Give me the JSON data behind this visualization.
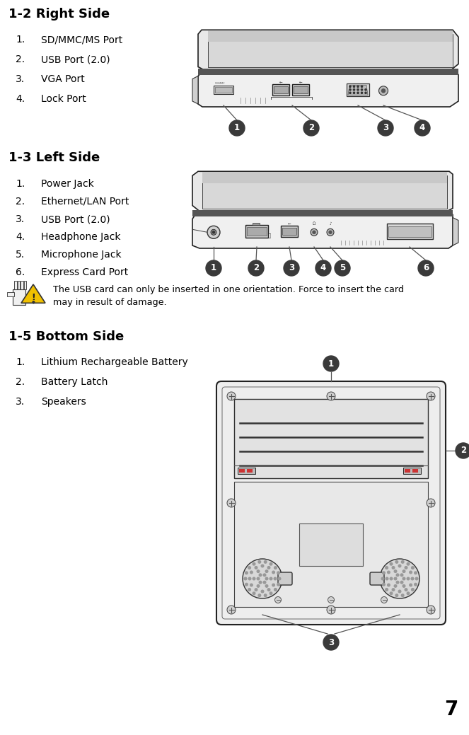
{
  "title_right": "1-2 Right Side",
  "title_left": "1-3 Left Side",
  "title_bottom": "1-5 Bottom Side",
  "right_items": [
    "SD/MMC/MS Port",
    "USB Port (2.0)",
    "VGA Port",
    "Lock Port"
  ],
  "left_items": [
    "Power Jack",
    "Ethernet/LAN Port",
    "USB Port (2.0)",
    "Headphone Jack",
    "Microphone Jack",
    "Express Card Port"
  ],
  "bottom_items": [
    "Lithium Rechargeable Battery",
    "Battery Latch",
    "Speakers"
  ],
  "warning_text1": "The USB card can only be inserted in one orientation. Force to insert the card",
  "warning_text2": "may in result of damage.",
  "page_number": "7",
  "bg_color": "#ffffff",
  "text_color": "#000000",
  "title_fontsize": 13,
  "item_fontsize": 10,
  "bubble_color": "#3a3a3a",
  "line_color": "#555555"
}
